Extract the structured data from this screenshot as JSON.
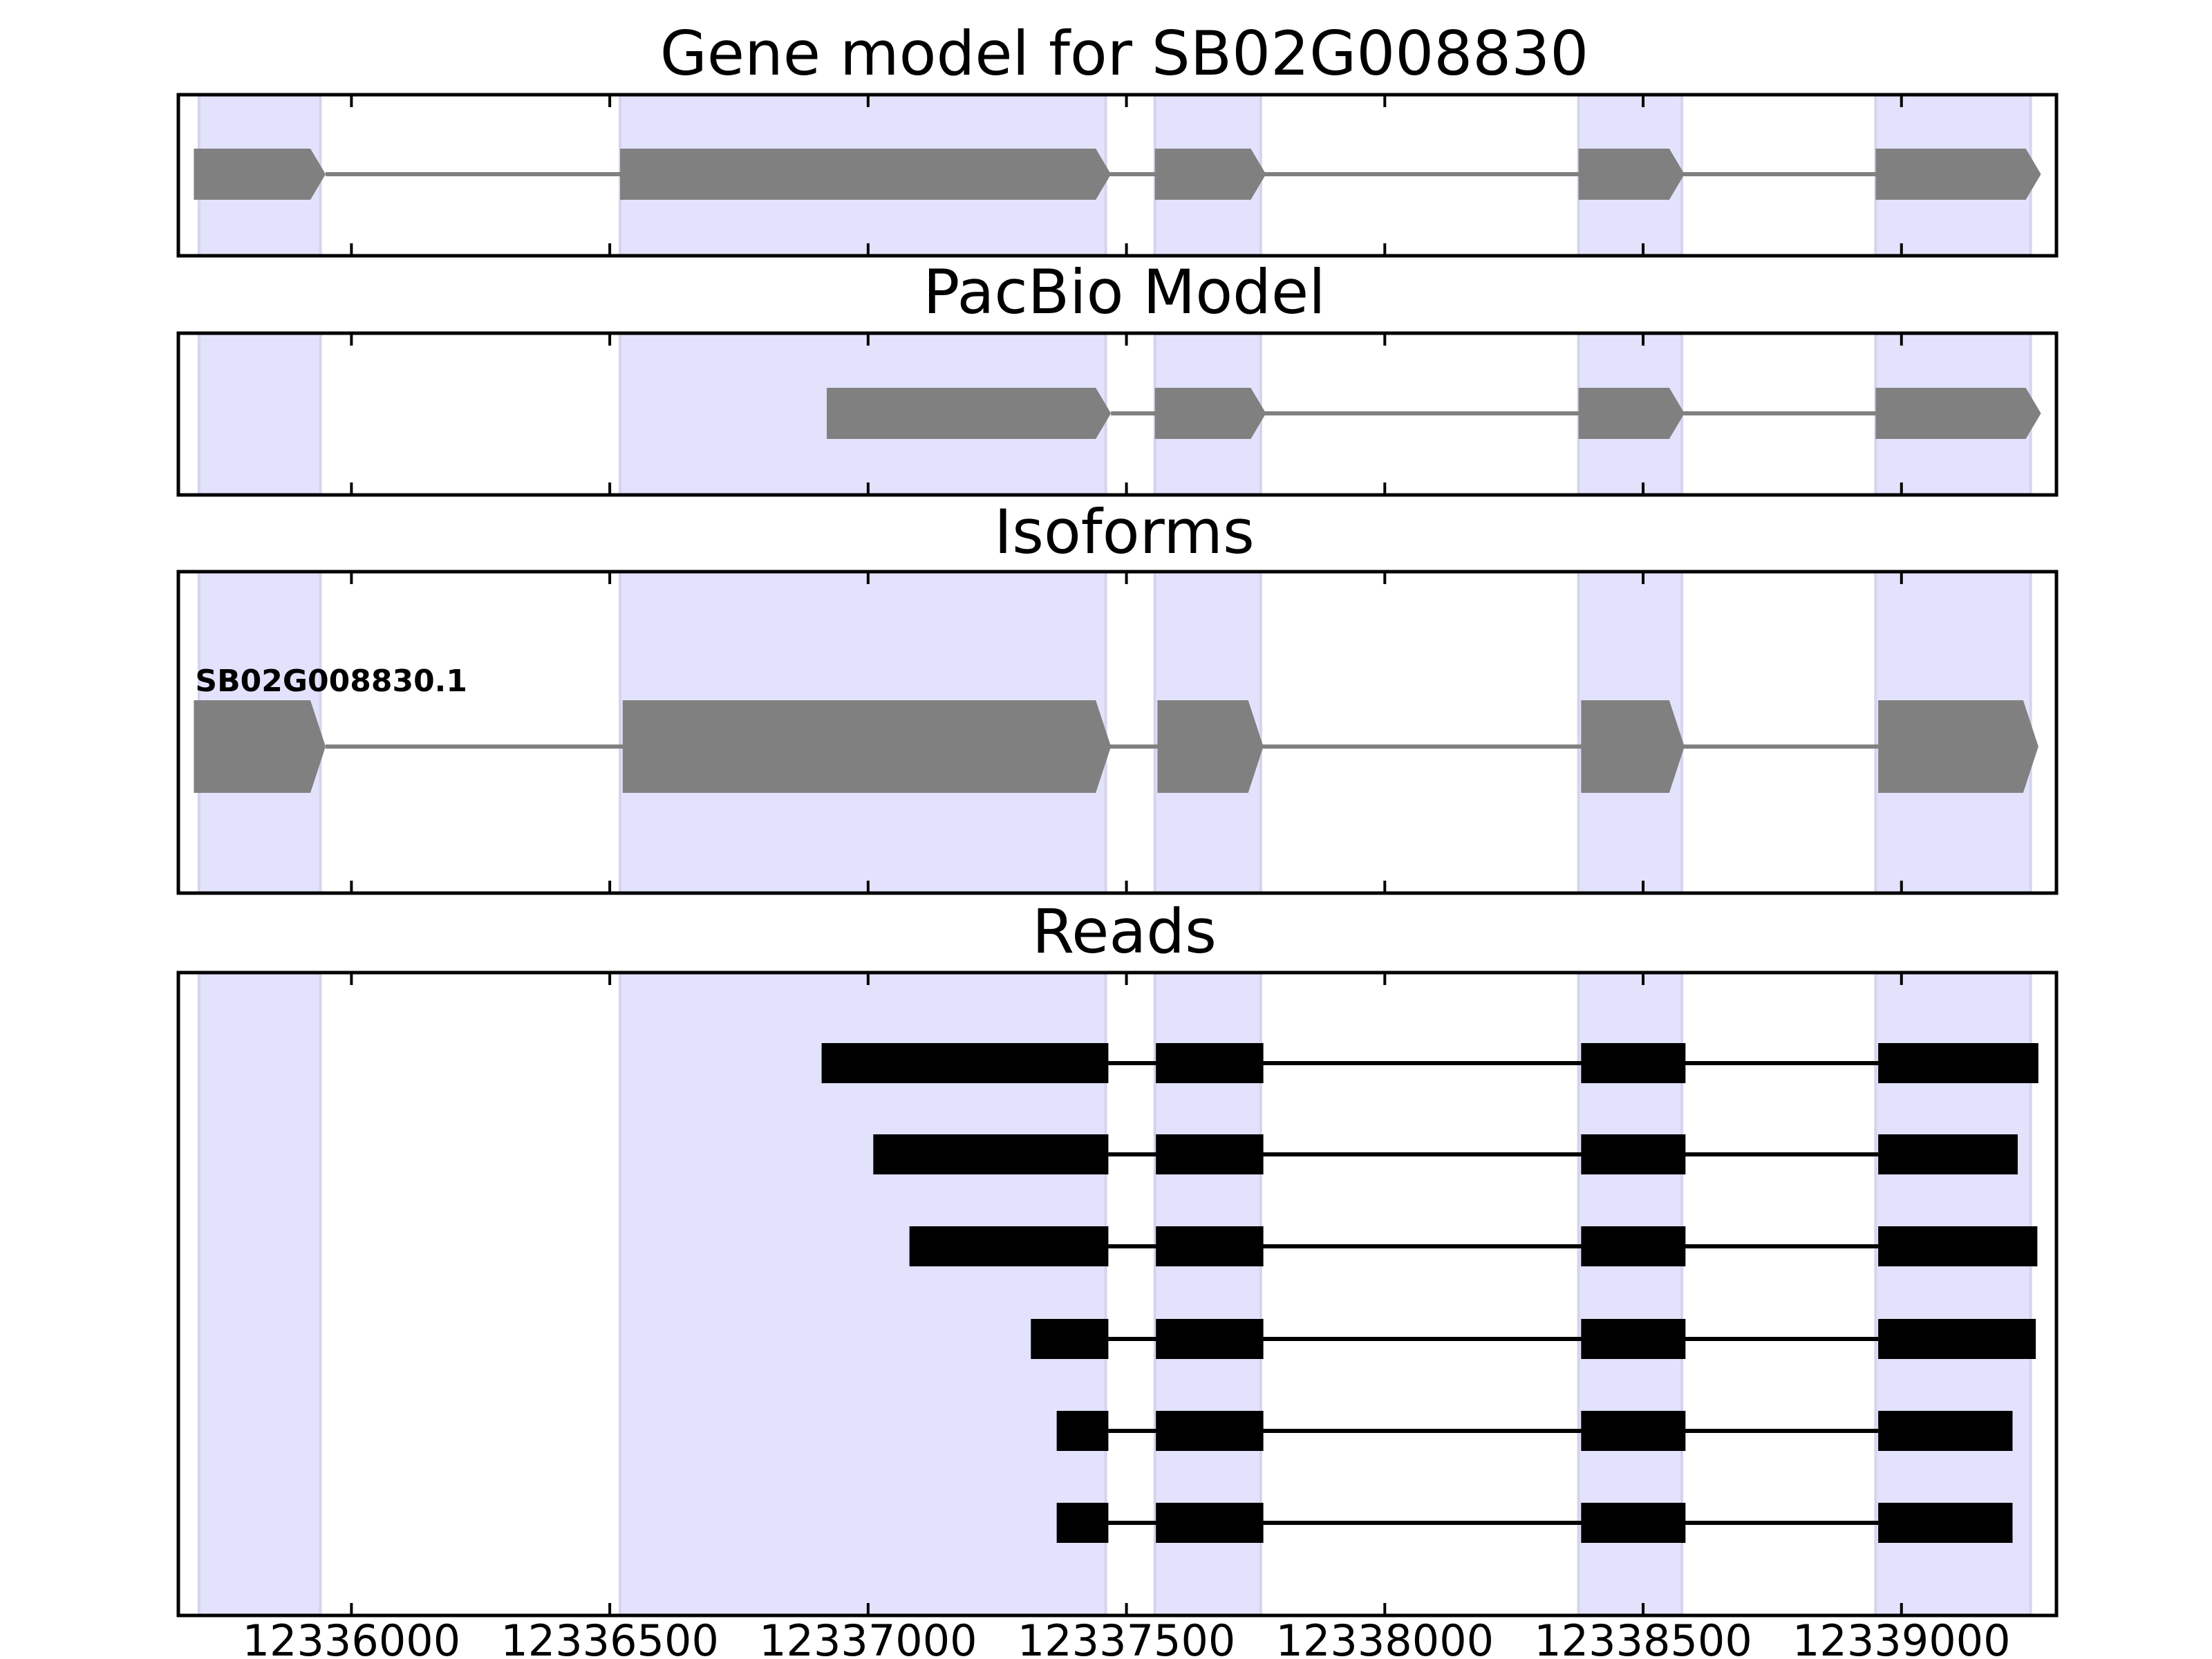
{
  "chart_data": {
    "type": "gene_model_track",
    "xlim": [
      12335665,
      12339300
    ],
    "x_ticks": [
      12336000,
      12336500,
      12337000,
      12337500,
      12338000,
      12338500,
      12339000
    ],
    "x_tick_labels": [
      "12336000",
      "12336500",
      "12337000",
      "12337500",
      "12338000",
      "12338500",
      "12339000"
    ],
    "highlight_color": "#e2e2fc",
    "exon_highlights": [
      [
        12335705,
        12335940
      ],
      [
        12336520,
        12337460
      ],
      [
        12337555,
        12337760
      ],
      [
        12338375,
        12338575
      ],
      [
        12338950,
        12339250
      ]
    ],
    "panels": [
      {
        "title": "Gene model for SB02G008830",
        "color": "#808080",
        "tracks": [
          {
            "label": "",
            "exons": [
              [
                12335695,
                12335950
              ],
              [
                12336520,
                12337470
              ],
              [
                12337555,
                12337770
              ],
              [
                12338375,
                12338580
              ],
              [
                12338950,
                12339270
              ]
            ]
          }
        ]
      },
      {
        "title": "PacBio Model",
        "color": "#808080",
        "tracks": [
          {
            "label": "",
            "exons": [
              [
                12336920,
                12337470
              ],
              [
                12337555,
                12337770
              ],
              [
                12338375,
                12338580
              ],
              [
                12338950,
                12339270
              ]
            ]
          }
        ]
      },
      {
        "title": "Isoforms",
        "color": "#808080",
        "tracks": [
          {
            "label": "SB02G008830.1",
            "exons": [
              [
                12335695,
                12335950
              ],
              [
                12336525,
                12337470
              ],
              [
                12337560,
                12337765
              ],
              [
                12338380,
                12338580
              ],
              [
                12338955,
                12339265
              ]
            ]
          }
        ]
      },
      {
        "title": "Reads",
        "color": "#000000",
        "tracks": [
          {
            "label": "",
            "exons": [
              [
                12336910,
                12337465
              ],
              [
                12337557,
                12337765
              ],
              [
                12338380,
                12338582
              ],
              [
                12338955,
                12339265
              ]
            ]
          },
          {
            "label": "",
            "exons": [
              [
                12337010,
                12337465
              ],
              [
                12337557,
                12337765
              ],
              [
                12338380,
                12338582
              ],
              [
                12338955,
                12339225
              ]
            ]
          },
          {
            "label": "",
            "exons": [
              [
                12337080,
                12337465
              ],
              [
                12337557,
                12337765
              ],
              [
                12338380,
                12338582
              ],
              [
                12338955,
                12339263
              ]
            ]
          },
          {
            "label": "",
            "exons": [
              [
                12337315,
                12337465
              ],
              [
                12337557,
                12337765
              ],
              [
                12338380,
                12338582
              ],
              [
                12338955,
                12339260
              ]
            ]
          },
          {
            "label": "",
            "exons": [
              [
                12337365,
                12337465
              ],
              [
                12337557,
                12337765
              ],
              [
                12338380,
                12338582
              ],
              [
                12338955,
                12339215
              ]
            ]
          },
          {
            "label": "",
            "exons": [
              [
                12337365,
                12337465
              ],
              [
                12337557,
                12337765
              ],
              [
                12338380,
                12338582
              ],
              [
                12338955,
                12339215
              ]
            ]
          }
        ]
      }
    ]
  }
}
